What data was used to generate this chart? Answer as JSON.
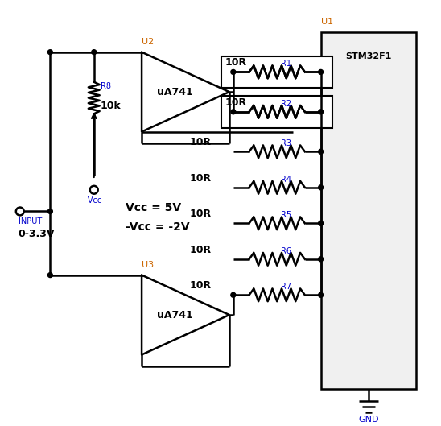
{
  "bg_color": "#ffffff",
  "line_color": "#000000",
  "blue_color": "#0000cc",
  "orange_color": "#cc6600",
  "fig_width": 5.48,
  "fig_height": 5.29,
  "dpi": 100,
  "stm32_label": "STM32F1",
  "u1_label": "U1",
  "u2_label": "U2",
  "u3_label": "U3",
  "input_label": "INPUT",
  "voltage_label1": "0-3.3V",
  "vcc_line1": "Vcc = 5V",
  "vcc_line2": "-Vcc = -2V",
  "neg_vcc_label": "-Vcc",
  "gnd_label": "GND",
  "r8_label": "R8",
  "r8_value": "10k",
  "uA741": "uA741",
  "resistors": [
    {
      "label": "R1",
      "value": "10R",
      "boxed": true
    },
    {
      "label": "R2",
      "value": "10R",
      "boxed": true
    },
    {
      "label": "R3",
      "value": "10R",
      "boxed": false
    },
    {
      "label": "R4",
      "value": "10R",
      "boxed": false
    },
    {
      "label": "R5",
      "value": "10R",
      "boxed": false
    },
    {
      "label": "R6",
      "value": "10R",
      "boxed": false
    },
    {
      "label": "R7",
      "value": "10R",
      "boxed": false
    }
  ]
}
